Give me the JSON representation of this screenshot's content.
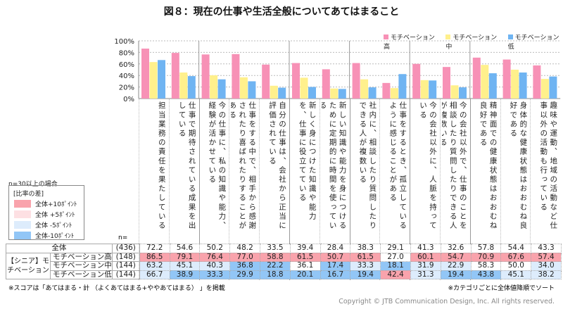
{
  "title": "図８：現在の仕事や生活全般についてあてはまること",
  "chart_data": {
    "type": "bar",
    "title": "図８：現在の仕事や生活全般についてあてはまること",
    "ylim": [
      0,
      100
    ],
    "yticks": [
      "0%",
      "20%",
      "40%",
      "60%",
      "80%",
      "100%"
    ],
    "grid": true,
    "legend_placement": "top-right",
    "categories": [
      "担当業務の責任を果たしている",
      "仕事で期待されている成果を出している",
      "今の仕事に、私の知識や能力、経験が活かせている",
      "仕事をする中で、相手から感謝されたり喜ばれたりすることがある",
      "自分の仕事は、会社から正当に評価されている",
      "新しく身につけた知識や能力を、仕事に役立てている",
      "新しい知識や能力を身につけるために定期的に時間を使っている",
      "社内に、相談したり質問したりできる人が複数いる",
      "仕事をするとき、孤立しているように感じることがある",
      "今の会社以外に、人脈を持っている",
      "今の会社以外で、仕事のことを相談したり質問したりできる人が複数いる",
      "精神面での健康状態はおおむね良好である",
      "身体的な健康状態はおおむね良好である",
      "趣味や運動、地域の活動など仕事以外の活動も行っている"
    ],
    "group_boundaries_after": [
      2,
      5,
      7,
      9,
      11
    ],
    "series": [
      {
        "name": "モチベーション高",
        "color": "#f791b6",
        "values": [
          86.5,
          79.1,
          76.4,
          77.0,
          58.8,
          61.5,
          50.7,
          61.5,
          27.0,
          60.1,
          54.7,
          70.9,
          67.6,
          57.4
        ]
      },
      {
        "name": "モチベーション中",
        "color": "#fff08c",
        "values": [
          63.2,
          45.1,
          40.3,
          36.8,
          22.2,
          36.1,
          17.4,
          33.3,
          18.1,
          31.9,
          22.9,
          58.3,
          50.0,
          34.0
        ]
      },
      {
        "name": "モチベーション低",
        "color": "#6fb4f2",
        "values": [
          66.7,
          38.9,
          33.3,
          29.9,
          18.8,
          20.1,
          16.7,
          19.4,
          42.4,
          31.3,
          19.4,
          43.8,
          45.1,
          38.2
        ]
      }
    ],
    "total": {
      "name": "全体",
      "values": [
        72.2,
        54.6,
        50.2,
        48.2,
        33.5,
        39.4,
        28.4,
        38.3,
        29.1,
        41.3,
        32.6,
        57.8,
        54.4,
        43.3
      ]
    }
  },
  "table": {
    "n_header": "n=",
    "group_label": "【シニア】モチベーション",
    "rows": [
      {
        "label": "全体",
        "n": "(436)"
      },
      {
        "label": "モチベーション高",
        "n": "(148)"
      },
      {
        "label": "モチベーション中",
        "n": "(144)"
      },
      {
        "label": "モチベーション低",
        "n": "(144)"
      }
    ]
  },
  "ratio_legend": {
    "condition": "n=30以上の場合",
    "heading": "[比率の差]",
    "items": [
      {
        "label": "全体+10ﾎﾟｲﾝﾄ",
        "color": "#f9a3ac"
      },
      {
        "label": "全体 +5ﾎﾟｲﾝﾄ",
        "color": "#fde0e3"
      },
      {
        "label": "全体 -5ﾎﾟｲﾝﾄ",
        "color": "#ddecfc"
      },
      {
        "label": "全体-10ﾎﾟｲﾝﾄ",
        "color": "#92c6f6"
      }
    ]
  },
  "notes": {
    "score": "※スコアは「あてはまる・計 （よくあてはまる+ややあてはまる） 」を掲載",
    "sort": "※カテゴリごとに全体値降順でソート",
    "copyright": "Copyright © JTB Communication Design, Inc. All rights reserved."
  }
}
